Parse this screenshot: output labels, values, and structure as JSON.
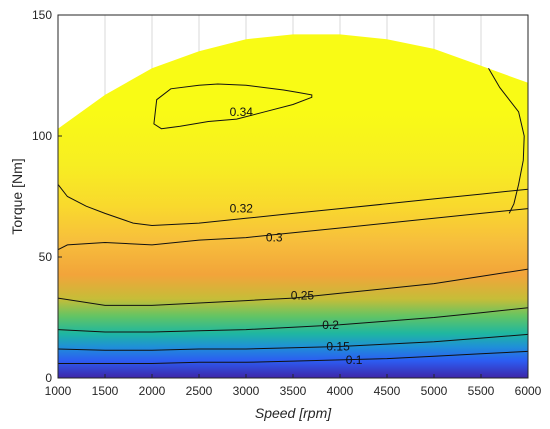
{
  "chart_data": {
    "type": "contour",
    "title": "",
    "xlabel": "Speed [rpm]",
    "ylabel": "Torque [Nm]",
    "xlim": [
      1000,
      6000
    ],
    "ylim": [
      0,
      150
    ],
    "x_ticks": [
      1000,
      1500,
      2000,
      2500,
      3000,
      3500,
      4000,
      4500,
      5000,
      5500,
      6000
    ],
    "y_ticks": [
      0,
      50,
      100,
      150
    ],
    "grid": true,
    "colormap": "parula",
    "colors": {
      "low": "#3e26a8",
      "mid": "#1fb7a0",
      "high": "#f9fb15",
      "contour_line": "#111111",
      "axes": "#262626"
    },
    "max_torque_curve": {
      "x": [
        1000,
        1500,
        2000,
        2500,
        3000,
        3500,
        4000,
        4500,
        5000,
        5500,
        6000
      ],
      "y": [
        103,
        117,
        128,
        135,
        140,
        142,
        142,
        140,
        136,
        129,
        122
      ]
    },
    "contours": [
      {
        "level": "0.1",
        "x": [
          1000,
          1500,
          2000,
          2500,
          3000,
          3500,
          4000,
          4500,
          5000,
          5500,
          6000
        ],
        "y": [
          6,
          6,
          6,
          6.5,
          6.5,
          7,
          7.5,
          8,
          9,
          10,
          11
        ],
        "label": {
          "text": "0.1",
          "x": 4150,
          "y": 7.5
        }
      },
      {
        "level": "0.15",
        "x": [
          1000,
          1500,
          2000,
          2500,
          3000,
          3500,
          4000,
          4500,
          5000,
          5500,
          6000
        ],
        "y": [
          12,
          11.5,
          11.5,
          12,
          12,
          12.5,
          13,
          14,
          15,
          16.5,
          18
        ],
        "label": {
          "text": "0.15",
          "x": 3980,
          "y": 13
        }
      },
      {
        "level": "0.2",
        "x": [
          1000,
          1500,
          2000,
          2500,
          3000,
          3500,
          4000,
          4500,
          5000,
          5500,
          6000
        ],
        "y": [
          20,
          19,
          19,
          19.5,
          20,
          21,
          22,
          23.5,
          25,
          27,
          29
        ],
        "label": {
          "text": "0.2",
          "x": 3900,
          "y": 22
        }
      },
      {
        "level": "0.25",
        "x": [
          1000,
          1500,
          2000,
          2500,
          3000,
          3500,
          4000,
          4500,
          5000,
          5500,
          6000
        ],
        "y": [
          33,
          30,
          30,
          31,
          32,
          33,
          35,
          37,
          39,
          42,
          45
        ],
        "label": {
          "text": "0.25",
          "x": 3600,
          "y": 34
        }
      },
      {
        "level": "0.3",
        "x": [
          1000,
          1100,
          1500,
          2000,
          2500,
          3000,
          3500,
          4000,
          4500,
          5000,
          5500,
          6000
        ],
        "y": [
          53,
          55,
          56,
          55,
          57,
          58,
          60,
          62,
          64,
          66,
          68,
          70
        ],
        "label": {
          "text": "0.3",
          "x": 3300,
          "y": 58
        }
      },
      {
        "level": "0.32",
        "x": [
          1000,
          1100,
          1300,
          1500,
          1800,
          2000,
          2500,
          3000,
          3500,
          4000,
          4500,
          5000,
          5500,
          6000
        ],
        "y": [
          80,
          75,
          71,
          68,
          64,
          63,
          64,
          66,
          68,
          70,
          72,
          74,
          76,
          78
        ],
        "label": {
          "text": "0.32",
          "x": 2950,
          "y": 70
        }
      },
      {
        "level": "0.34",
        "closed": true,
        "x": [
          2020,
          2050,
          2200,
          2500,
          2700,
          3000,
          3200,
          3400,
          3550,
          3700,
          3700,
          3500,
          3200,
          2900,
          2600,
          2300,
          2100,
          2020
        ],
        "y": [
          105,
          115,
          119.5,
          121,
          121.5,
          121,
          120,
          119,
          118,
          117,
          116,
          113,
          110,
          107,
          106,
          104,
          103,
          105
        ],
        "label": {
          "text": "0.34",
          "x": 2950,
          "y": 110
        }
      },
      {
        "level": "0.33",
        "unlabeled": true,
        "x": [
          5580,
          5700,
          5900,
          5960,
          5950,
          5900,
          5850,
          5800
        ],
        "y": [
          128,
          120,
          110,
          100,
          90,
          80,
          72,
          68
        ]
      }
    ]
  }
}
